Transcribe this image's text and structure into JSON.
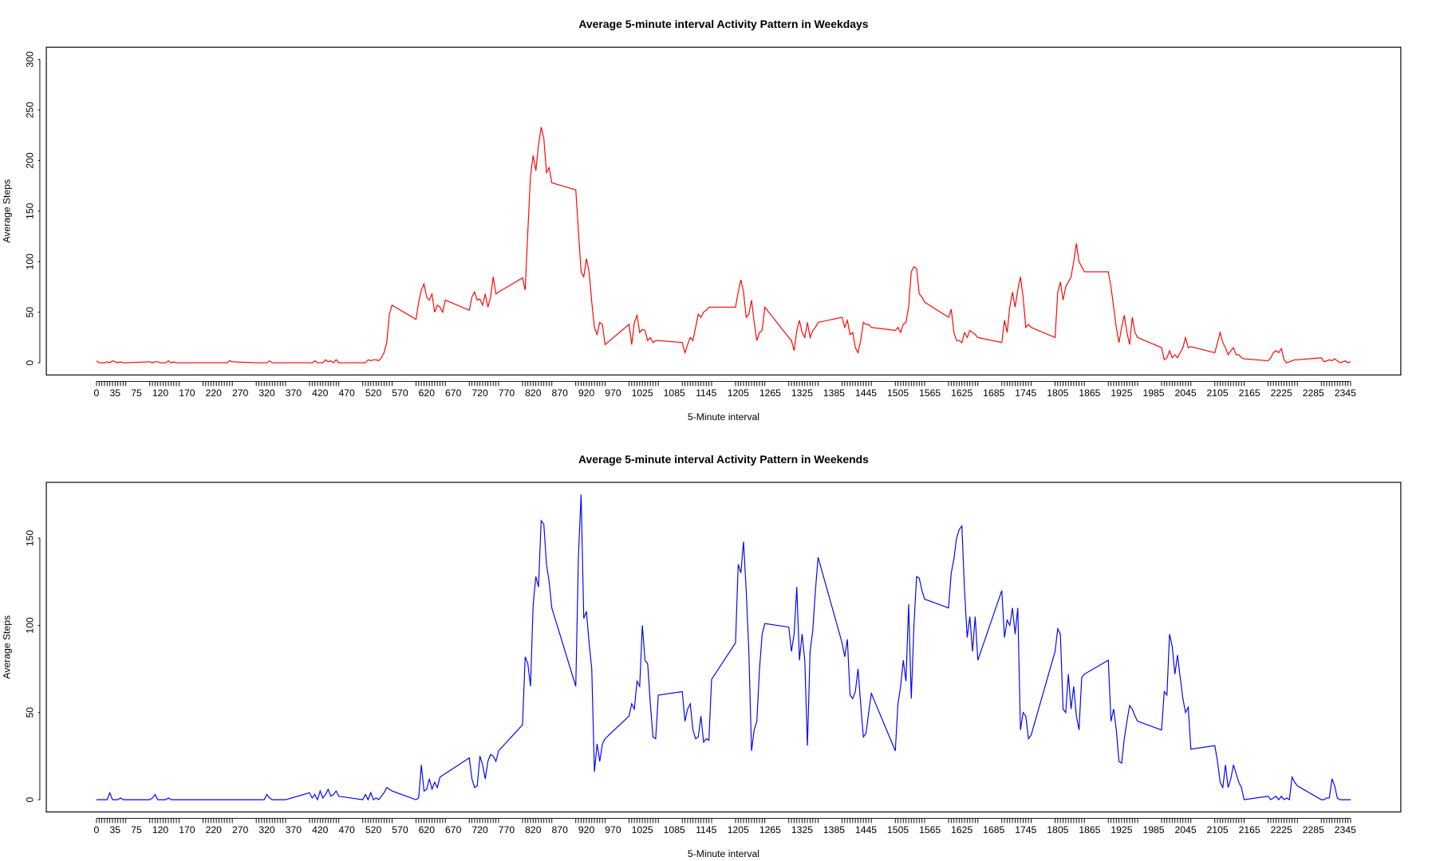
{
  "chart_data": [
    {
      "type": "line",
      "title": "Average 5-minute interval Activity Pattern in Weekdays",
      "xlabel": "5-Minute interval",
      "ylabel": "Average Steps",
      "color": "#ff0000",
      "xlim": [
        -94.2,
        2449.2
      ],
      "ylim": [
        -12,
        312
      ],
      "yticks": [
        0,
        50,
        100,
        150,
        200,
        250,
        300
      ],
      "xticks": [
        0,
        35,
        75,
        120,
        170,
        220,
        270,
        320,
        370,
        420,
        470,
        520,
        570,
        620,
        670,
        720,
        770,
        820,
        870,
        920,
        970,
        1025,
        1085,
        1145,
        1205,
        1265,
        1325,
        1385,
        1445,
        1505,
        1565,
        1625,
        1685,
        1745,
        1805,
        1865,
        1925,
        1985,
        2045,
        2105,
        2165,
        2225,
        2285,
        2345
      ],
      "x": [
        0,
        5,
        10,
        15,
        20,
        25,
        30,
        35,
        40,
        45,
        50,
        55,
        100,
        105,
        110,
        115,
        120,
        125,
        130,
        135,
        140,
        145,
        150,
        155,
        200,
        205,
        210,
        215,
        220,
        225,
        230,
        235,
        240,
        245,
        250,
        255,
        300,
        305,
        310,
        315,
        320,
        325,
        330,
        335,
        340,
        345,
        350,
        355,
        400,
        405,
        410,
        415,
        420,
        425,
        430,
        435,
        440,
        445,
        450,
        455,
        500,
        505,
        510,
        515,
        520,
        525,
        530,
        535,
        540,
        545,
        550,
        555,
        600,
        605,
        610,
        615,
        620,
        625,
        630,
        635,
        640,
        645,
        650,
        655,
        700,
        705,
        710,
        715,
        720,
        725,
        730,
        735,
        740,
        745,
        750,
        755,
        800,
        805,
        810,
        815,
        820,
        825,
        830,
        835,
        840,
        845,
        850,
        855,
        900,
        905,
        910,
        915,
        920,
        925,
        930,
        935,
        940,
        945,
        950,
        955,
        1000,
        1005,
        1010,
        1015,
        1020,
        1025,
        1030,
        1035,
        1040,
        1045,
        1050,
        1055,
        1100,
        1105,
        1110,
        1115,
        1120,
        1125,
        1130,
        1135,
        1140,
        1145,
        1150,
        1155,
        1200,
        1205,
        1210,
        1215,
        1220,
        1225,
        1230,
        1235,
        1240,
        1245,
        1250,
        1255,
        1300,
        1305,
        1310,
        1315,
        1320,
        1325,
        1330,
        1335,
        1340,
        1345,
        1350,
        1355,
        1400,
        1405,
        1410,
        1415,
        1420,
        1425,
        1430,
        1435,
        1440,
        1445,
        1450,
        1455,
        1500,
        1505,
        1510,
        1515,
        1520,
        1525,
        1530,
        1535,
        1540,
        1545,
        1550,
        1555,
        1600,
        1605,
        1610,
        1615,
        1620,
        1625,
        1630,
        1635,
        1640,
        1645,
        1650,
        1655,
        1700,
        1705,
        1710,
        1715,
        1720,
        1725,
        1730,
        1735,
        1740,
        1745,
        1750,
        1755,
        1800,
        1805,
        1810,
        1815,
        1820,
        1825,
        1830,
        1835,
        1840,
        1845,
        1850,
        1855,
        1900,
        1905,
        1910,
        1915,
        1920,
        1925,
        1930,
        1935,
        1940,
        1945,
        1950,
        1955,
        2000,
        2005,
        2010,
        2015,
        2020,
        2025,
        2030,
        2035,
        2040,
        2045,
        2050,
        2055,
        2100,
        2105,
        2110,
        2115,
        2120,
        2125,
        2130,
        2135,
        2140,
        2145,
        2150,
        2155,
        2200,
        2205,
        2210,
        2215,
        2220,
        2225,
        2230,
        2235,
        2240,
        2245,
        2250,
        2255,
        2300,
        2305,
        2310,
        2315,
        2320,
        2325,
        2330,
        2335,
        2340,
        2345,
        2350,
        2355
      ],
      "values": [
        2,
        0,
        0,
        0,
        1,
        0,
        2,
        1,
        0,
        1,
        0,
        0,
        1,
        0,
        1,
        1,
        0,
        0,
        0,
        2,
        0,
        1,
        0,
        0,
        0,
        0,
        0,
        0,
        0,
        0,
        0,
        0,
        0,
        0,
        2,
        1,
        0,
        0,
        0,
        0,
        0,
        2,
        0,
        0,
        0,
        0,
        0,
        0,
        0,
        0,
        2,
        0,
        0,
        0,
        3,
        1,
        2,
        0,
        3,
        0,
        0,
        0,
        3,
        2,
        3,
        3,
        2,
        5,
        10,
        20,
        48,
        57,
        43,
        60,
        72,
        78,
        65,
        62,
        68,
        50,
        57,
        55,
        50,
        62,
        52,
        65,
        70,
        62,
        63,
        57,
        68,
        55,
        65,
        85,
        68,
        70,
        84,
        72,
        130,
        185,
        205,
        190,
        215,
        233,
        222,
        188,
        193,
        178,
        171,
        130,
        90,
        85,
        103,
        90,
        60,
        35,
        28,
        40,
        38,
        18,
        38,
        18,
        40,
        47,
        30,
        33,
        32,
        22,
        25,
        20,
        22,
        22,
        20,
        10,
        18,
        25,
        22,
        35,
        48,
        45,
        50,
        52,
        55,
        55,
        55,
        70,
        82,
        70,
        45,
        48,
        62,
        40,
        22,
        30,
        32,
        55,
        25,
        22,
        12,
        32,
        42,
        30,
        25,
        40,
        25,
        32,
        35,
        40,
        45,
        35,
        42,
        28,
        30,
        15,
        10,
        22,
        40,
        38,
        38,
        35,
        32,
        35,
        30,
        38,
        40,
        55,
        90,
        95,
        93,
        68,
        65,
        60,
        45,
        53,
        30,
        22,
        22,
        20,
        30,
        25,
        32,
        30,
        28,
        25,
        20,
        42,
        30,
        55,
        70,
        55,
        72,
        85,
        65,
        35,
        38,
        35,
        25,
        70,
        80,
        62,
        75,
        80,
        85,
        100,
        118,
        100,
        95,
        90,
        90,
        75,
        55,
        35,
        20,
        35,
        47,
        30,
        18,
        45,
        30,
        25,
        15,
        3,
        5,
        12,
        5,
        8,
        5,
        10,
        15,
        25,
        15,
        16,
        10,
        20,
        30,
        20,
        15,
        8,
        12,
        15,
        8,
        8,
        5,
        4,
        2,
        5,
        10,
        12,
        10,
        14,
        3,
        0,
        1,
        2,
        3,
        3,
        5,
        1,
        2,
        3,
        2,
        4,
        2,
        0,
        1,
        2,
        0,
        1
      ]
    },
    {
      "type": "line",
      "title": "Average 5-minute interval Activity Pattern in Weekends",
      "xlabel": "5-Minute interval",
      "ylabel": "Average Steps",
      "color": "#0000ff",
      "xlim": [
        -94.2,
        2449.2
      ],
      "ylim": [
        -7,
        182
      ],
      "yticks": [
        0,
        50,
        100,
        150
      ],
      "xticks": [
        0,
        35,
        75,
        120,
        170,
        220,
        270,
        320,
        370,
        420,
        470,
        520,
        570,
        620,
        670,
        720,
        770,
        820,
        870,
        920,
        970,
        1025,
        1085,
        1145,
        1205,
        1265,
        1325,
        1385,
        1445,
        1505,
        1565,
        1625,
        1685,
        1745,
        1805,
        1865,
        1925,
        1985,
        2045,
        2105,
        2165,
        2225,
        2285,
        2345
      ],
      "x": [
        0,
        5,
        10,
        15,
        20,
        25,
        30,
        35,
        40,
        45,
        50,
        55,
        100,
        105,
        110,
        115,
        120,
        125,
        130,
        135,
        140,
        145,
        150,
        155,
        200,
        205,
        210,
        215,
        220,
        225,
        230,
        235,
        240,
        245,
        250,
        255,
        300,
        305,
        310,
        315,
        320,
        325,
        330,
        335,
        340,
        345,
        350,
        355,
        400,
        405,
        410,
        415,
        420,
        425,
        430,
        435,
        440,
        445,
        450,
        455,
        500,
        505,
        510,
        515,
        520,
        525,
        530,
        535,
        540,
        545,
        550,
        555,
        600,
        605,
        610,
        615,
        620,
        625,
        630,
        635,
        640,
        645,
        650,
        655,
        700,
        705,
        710,
        715,
        720,
        725,
        730,
        735,
        740,
        745,
        750,
        755,
        800,
        805,
        810,
        815,
        820,
        825,
        830,
        835,
        840,
        845,
        850,
        855,
        900,
        905,
        910,
        915,
        920,
        925,
        930,
        935,
        940,
        945,
        950,
        955,
        1000,
        1005,
        1010,
        1015,
        1020,
        1025,
        1030,
        1035,
        1040,
        1045,
        1050,
        1055,
        1100,
        1105,
        1110,
        1115,
        1120,
        1125,
        1130,
        1135,
        1140,
        1145,
        1150,
        1155,
        1200,
        1205,
        1210,
        1215,
        1220,
        1225,
        1230,
        1235,
        1240,
        1245,
        1250,
        1255,
        1300,
        1305,
        1310,
        1315,
        1320,
        1325,
        1330,
        1335,
        1340,
        1345,
        1350,
        1355,
        1400,
        1405,
        1410,
        1415,
        1420,
        1425,
        1430,
        1435,
        1440,
        1445,
        1450,
        1455,
        1500,
        1505,
        1510,
        1515,
        1520,
        1525,
        1530,
        1535,
        1540,
        1545,
        1550,
        1555,
        1600,
        1605,
        1610,
        1615,
        1620,
        1625,
        1630,
        1635,
        1640,
        1645,
        1650,
        1655,
        1700,
        1705,
        1710,
        1715,
        1720,
        1725,
        1730,
        1735,
        1740,
        1745,
        1750,
        1755,
        1800,
        1805,
        1810,
        1815,
        1820,
        1825,
        1830,
        1835,
        1840,
        1845,
        1850,
        1855,
        1900,
        1905,
        1910,
        1915,
        1920,
        1925,
        1930,
        1935,
        1940,
        1945,
        1950,
        1955,
        2000,
        2005,
        2010,
        2015,
        2020,
        2025,
        2030,
        2035,
        2040,
        2045,
        2050,
        2055,
        2100,
        2105,
        2110,
        2115,
        2120,
        2125,
        2130,
        2135,
        2140,
        2145,
        2150,
        2155,
        2200,
        2205,
        2210,
        2215,
        2220,
        2225,
        2230,
        2235,
        2240,
        2245,
        2250,
        2255,
        2300,
        2305,
        2310,
        2315,
        2320,
        2325,
        2330,
        2335,
        2340,
        2345,
        2350,
        2355
      ],
      "values": [
        0,
        0,
        0,
        0,
        0,
        4,
        0,
        0,
        0,
        1,
        0,
        0,
        0,
        1,
        3,
        0,
        0,
        0,
        0,
        1,
        0,
        0,
        0,
        0,
        0,
        0,
        0,
        0,
        0,
        0,
        0,
        0,
        0,
        0,
        0,
        0,
        0,
        0,
        0,
        0,
        3,
        1,
        0,
        0,
        0,
        0,
        0,
        0,
        4,
        1,
        3,
        0,
        5,
        1,
        3,
        6,
        2,
        3,
        5,
        2,
        0,
        3,
        0,
        4,
        0,
        1,
        0,
        2,
        4,
        7,
        6,
        5,
        0,
        1,
        20,
        5,
        6,
        12,
        6,
        10,
        7,
        13,
        14,
        15,
        24,
        12,
        7,
        8,
        25,
        20,
        12,
        22,
        26,
        25,
        22,
        28,
        43,
        82,
        78,
        65,
        112,
        128,
        122,
        160,
        158,
        135,
        125,
        110,
        65,
        140,
        175,
        104,
        108,
        90,
        75,
        16,
        32,
        22,
        32,
        35,
        48,
        55,
        52,
        68,
        65,
        100,
        80,
        78,
        55,
        36,
        35,
        60,
        62,
        45,
        52,
        55,
        40,
        35,
        36,
        48,
        33,
        35,
        34,
        69,
        90,
        135,
        130,
        148,
        120,
        85,
        28,
        40,
        45,
        75,
        95,
        101,
        99,
        85,
        95,
        122,
        80,
        95,
        80,
        31,
        85,
        97,
        120,
        139,
        90,
        82,
        92,
        60,
        58,
        62,
        75,
        55,
        36,
        38,
        50,
        61,
        28,
        55,
        65,
        80,
        68,
        112,
        58,
        100,
        128,
        127,
        120,
        115,
        110,
        130,
        138,
        150,
        155,
        157,
        120,
        93,
        105,
        85,
        105,
        80,
        120,
        93,
        103,
        100,
        110,
        95,
        110,
        40,
        50,
        48,
        35,
        37,
        85,
        98,
        95,
        52,
        50,
        72,
        52,
        65,
        48,
        40,
        70,
        72,
        80,
        45,
        52,
        40,
        22,
        21,
        35,
        45,
        54,
        52,
        48,
        45,
        40,
        62,
        60,
        95,
        88,
        72,
        83,
        70,
        58,
        50,
        53,
        29,
        31,
        22,
        10,
        7,
        20,
        7,
        12,
        20,
        15,
        10,
        7,
        0,
        2,
        0,
        1,
        2,
        0,
        2,
        0,
        1,
        0,
        13,
        10,
        8,
        0,
        0,
        1,
        1,
        12,
        8,
        1,
        0,
        0,
        0,
        0,
        0
      ]
    }
  ]
}
